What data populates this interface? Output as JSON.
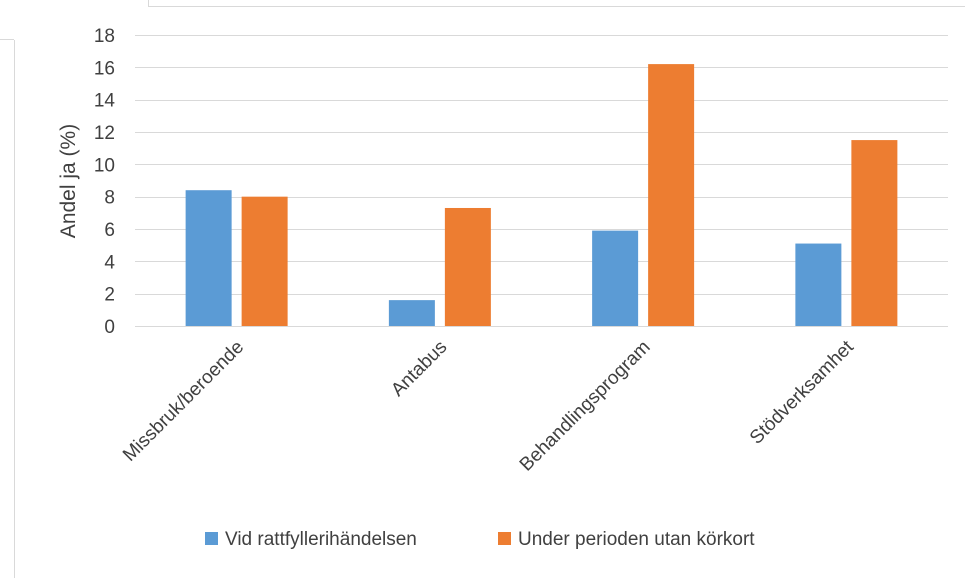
{
  "chart_data": {
    "type": "bar",
    "title": "",
    "xlabel": "",
    "ylabel": "Andel ja (%)",
    "ylim": [
      0,
      18
    ],
    "yticks": [
      0,
      2,
      4,
      6,
      8,
      10,
      12,
      14,
      16,
      18
    ],
    "grid": true,
    "legend_position": "bottom",
    "categories": [
      "Missbruk/beroende",
      "Antabus",
      "Behandlingsprogram",
      "Stödverksamhet"
    ],
    "series": [
      {
        "name": "Vid rattfyllerihändelsen",
        "color": "#5B9BD5",
        "values": [
          8.4,
          1.6,
          5.9,
          5.1
        ]
      },
      {
        "name": "Under perioden utan körkort",
        "color": "#ED7D31",
        "values": [
          8.0,
          7.3,
          16.2,
          11.5
        ]
      }
    ]
  }
}
